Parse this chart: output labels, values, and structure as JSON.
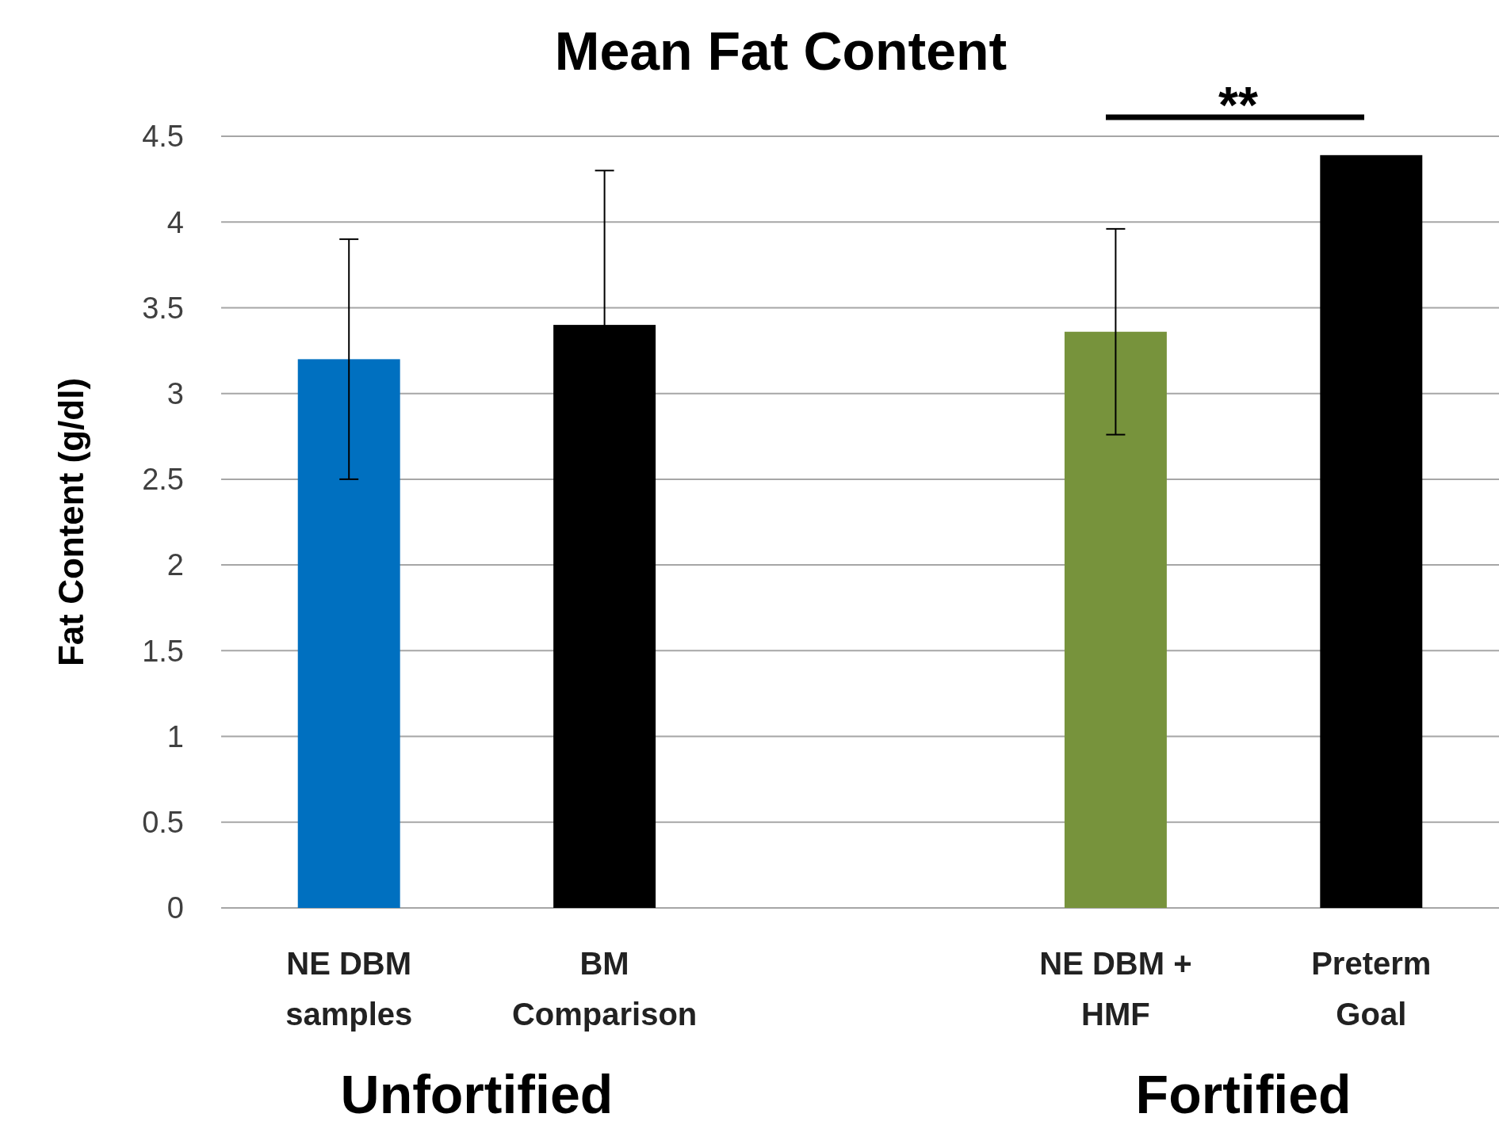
{
  "chart_data": {
    "type": "bar",
    "title": "Mean Fat Content",
    "ylabel": "Fat Content (g/dl)",
    "categories": [
      "NE DBM\nsamples",
      "BM\nComparison",
      null,
      "NE DBM +\nHMF",
      "Preterm\nGoal"
    ],
    "values": [
      3.2,
      3.4,
      null,
      3.36,
      4.39
    ],
    "colors": [
      "#0070c0",
      "#000000",
      null,
      "#77933c",
      "#000000"
    ],
    "errors": [
      0.7,
      0.9,
      null,
      0.6,
      null
    ],
    "ylim": [
      0,
      4.5
    ],
    "yticks": [
      0,
      0.5,
      1,
      1.5,
      2,
      2.5,
      3,
      3.5,
      4,
      4.5
    ],
    "grid": "y",
    "annotations": [
      "Unfortified",
      "Fortified",
      "**"
    ]
  }
}
